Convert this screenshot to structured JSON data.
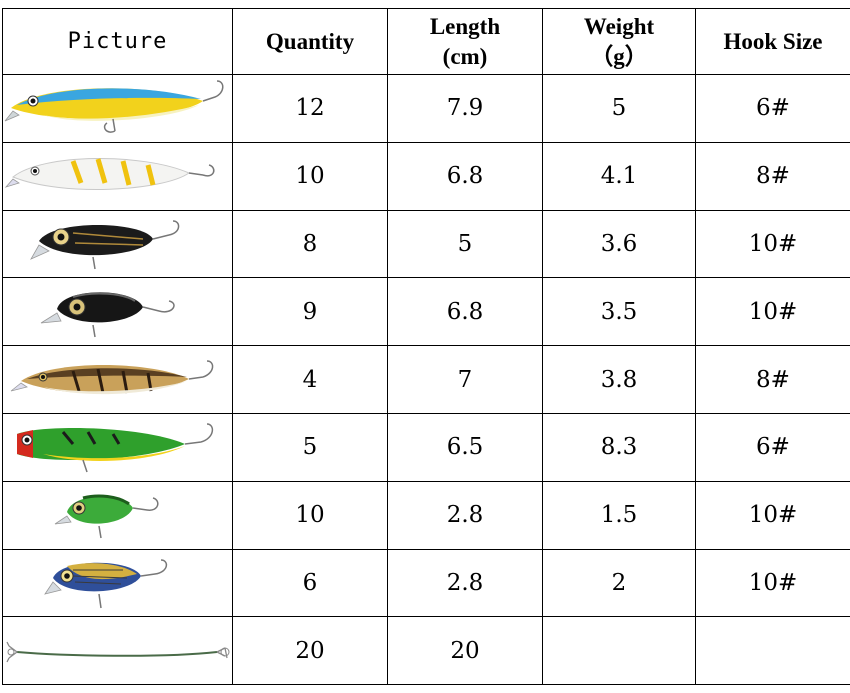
{
  "headers": {
    "picture": "Picture",
    "quantity": "Quantity",
    "length_line1": "Length",
    "length_line2": "(cm)",
    "weight_line1": "Weight",
    "weight_line2": "（g）",
    "hook_size": "Hook Size"
  },
  "rows": [
    {
      "picture": "minnow-lure-yellow-blue",
      "quantity": "12",
      "length": "7.9",
      "weight": "5",
      "hook_size": "6#"
    },
    {
      "picture": "minnow-lure-white-yellow",
      "quantity": "10",
      "length": "6.8",
      "weight": "4.1",
      "hook_size": "8#"
    },
    {
      "picture": "crank-lure-black-gold",
      "quantity": "8",
      "length": "5",
      "weight": "3.6",
      "hook_size": "10#"
    },
    {
      "picture": "crank-lure-black",
      "quantity": "9",
      "length": "6.8",
      "weight": "3.5",
      "hook_size": "10#"
    },
    {
      "picture": "minnow-lure-brown-stripe",
      "quantity": "4",
      "length": "7",
      "weight": "3.8",
      "hook_size": "8#"
    },
    {
      "picture": "popper-lure-green-red",
      "quantity": "5",
      "length": "6.5",
      "weight": "8.3",
      "hook_size": "6#"
    },
    {
      "picture": "crank-lure-green",
      "quantity": "10",
      "length": "2.8",
      "weight": "1.5",
      "hook_size": "10#"
    },
    {
      "picture": "crank-lure-blue-gold",
      "quantity": "6",
      "length": "2.8",
      "weight": "2",
      "hook_size": "10#"
    },
    {
      "picture": "wire-leader",
      "quantity": "20",
      "length": "20",
      "weight": "",
      "hook_size": ""
    }
  ],
  "colors": {
    "border": "#000000",
    "lure_yellow": "#f2d21c",
    "lure_blue": "#3aa6e0",
    "lure_green": "#2fa02c",
    "lure_black": "#1b1b1b",
    "lure_red": "#d42a1e"
  }
}
